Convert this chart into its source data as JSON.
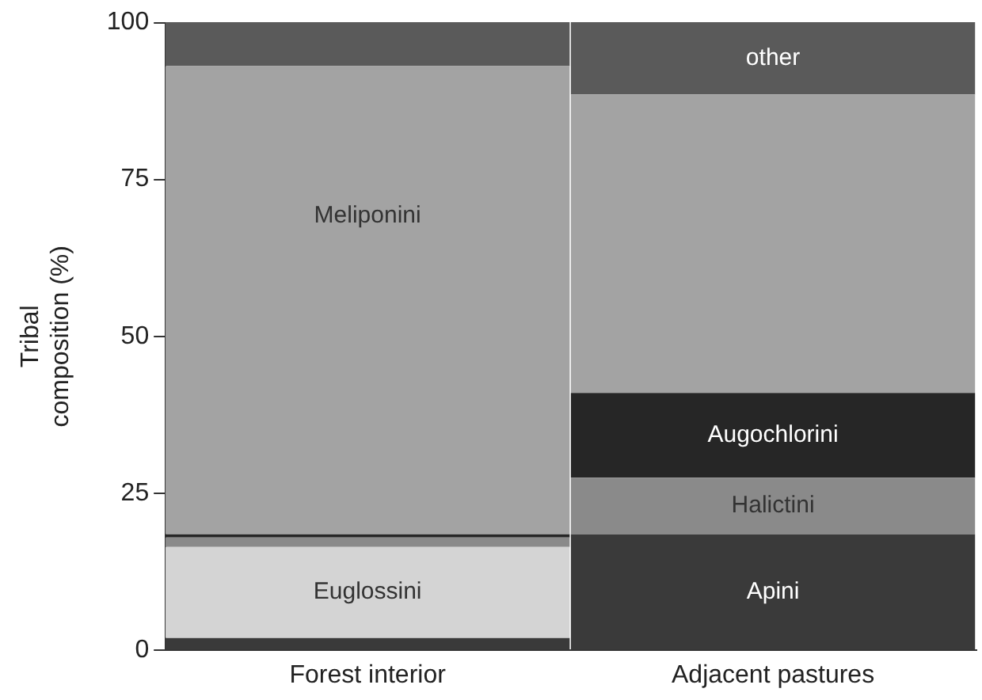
{
  "chart_data": {
    "type": "bar",
    "stacked": true,
    "ylabel": "Tribal composition (%)",
    "categories": [
      "Forest interior",
      "Adjacent pastures"
    ],
    "ylim": [
      0,
      100
    ],
    "yticks": [
      0,
      25,
      50,
      75,
      100
    ],
    "grid": false,
    "legend": false,
    "series": [
      {
        "name": "Apini",
        "color": "#3a3a3a",
        "values": [
          2,
          18.5
        ]
      },
      {
        "name": "Euglossini",
        "color": "#d4d4d4",
        "values": [
          14.5,
          0
        ]
      },
      {
        "name": "Halictini",
        "color": "#8a8a8a",
        "values": [
          1.5,
          9
        ]
      },
      {
        "name": "Augochlorini",
        "color": "#262626",
        "values": [
          0.5,
          13.5
        ]
      },
      {
        "name": "Meliponini",
        "color": "#a3a3a3",
        "values": [
          74.5,
          47.5
        ]
      },
      {
        "name": "other",
        "color": "#5a5a5a",
        "values": [
          7,
          11.5
        ]
      }
    ]
  }
}
